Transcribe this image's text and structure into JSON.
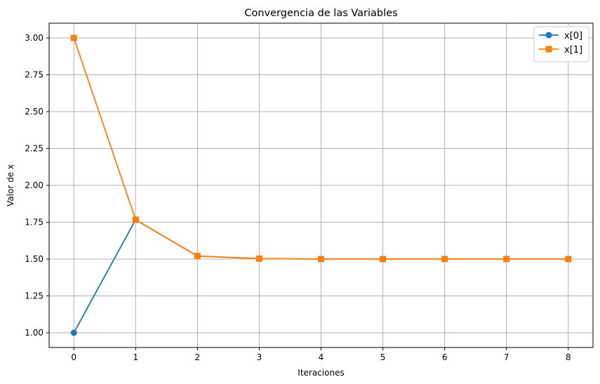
{
  "chart_data": {
    "type": "line",
    "title": "Convergencia de las Variables",
    "xlabel": "Iteraciones",
    "ylabel": "Valor de x",
    "x": [
      0,
      1,
      2,
      3,
      4,
      5,
      6,
      7,
      8
    ],
    "xlim": [
      -0.4,
      8.4
    ],
    "ylim": [
      0.9,
      3.1
    ],
    "xticks": [
      0,
      1,
      2,
      3,
      4,
      5,
      6,
      7,
      8
    ],
    "yticks": [
      1.0,
      1.25,
      1.5,
      1.75,
      2.0,
      2.25,
      2.5,
      2.75,
      3.0
    ],
    "xtick_labels": [
      "0",
      "1",
      "2",
      "3",
      "4",
      "5",
      "6",
      "7",
      "8"
    ],
    "ytick_labels": [
      "1.00",
      "1.25",
      "1.50",
      "1.75",
      "2.00",
      "2.25",
      "2.50",
      "2.75",
      "3.00"
    ],
    "grid": true,
    "legend_position": "top-right",
    "series": [
      {
        "name": "x[0]",
        "color": "#1f77b4",
        "marker": "circle",
        "values": [
          1.0,
          1.767,
          1.52,
          1.503,
          1.5,
          1.5,
          1.5,
          1.5,
          1.5
        ]
      },
      {
        "name": "x[1]",
        "color": "#ff7f0e",
        "marker": "square",
        "values": [
          3.0,
          1.767,
          1.52,
          1.503,
          1.5,
          1.5,
          1.5,
          1.5,
          1.5
        ]
      }
    ]
  }
}
